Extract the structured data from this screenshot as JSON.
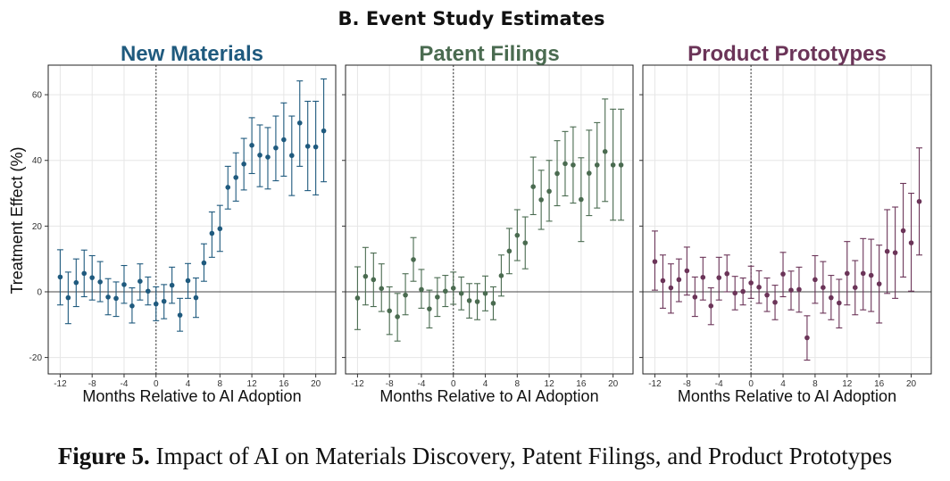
{
  "figure": {
    "suptitle": "B. Event Study Estimates",
    "caption_label": "Figure 5.",
    "caption_text": " Impact of AI on Materials Discovery, Patent Filings, and Product Prototypes",
    "ylabel": "Treatment Effect (%)"
  },
  "chart_data": [
    {
      "type": "scatter",
      "style": "point-with-error-bars",
      "title": "New Materials",
      "color": "#1f5a7e",
      "xlabel": "Months Relative to AI Adoption",
      "ylabel": "Treatment Effect (%)",
      "xlim": [
        -13.5,
        22.5
      ],
      "ylim": [
        -25,
        69
      ],
      "xticks": [
        -12,
        -8,
        -4,
        0,
        4,
        8,
        12,
        16,
        20
      ],
      "xtick_labels": [
        "-12",
        "-8",
        "-4",
        "0",
        "4",
        "8",
        "12",
        "16",
        "20"
      ],
      "yticks": [
        -20,
        0,
        20,
        40,
        60
      ],
      "ytick_labels": [
        "-20",
        "0",
        "20",
        "40",
        "60"
      ],
      "reference_lines": {
        "vertical_dotted_x": 0,
        "horizontal_y": 0
      },
      "grid": true,
      "x": [
        -12,
        -11,
        -10,
        -9,
        -8,
        -7,
        -6,
        -5,
        -4,
        -3,
        -2,
        -1,
        0,
        1,
        2,
        3,
        4,
        5,
        6,
        7,
        8,
        9,
        10,
        11,
        12,
        13,
        14,
        15,
        16,
        17,
        18,
        19,
        20,
        21
      ],
      "estimate": [
        4.5,
        -1.8,
        2.8,
        5.6,
        4.3,
        3.0,
        -1.6,
        -2.0,
        2.2,
        -4.3,
        3.2,
        0.2,
        -3.7,
        -2.9,
        2.0,
        -7.1,
        3.4,
        -1.8,
        8.8,
        17.8,
        19.2,
        31.8,
        34.8,
        38.9,
        44.6,
        41.6,
        41.0,
        43.8,
        46.3,
        41.5,
        51.4,
        44.3,
        44.1,
        49.0
      ],
      "ci_low": [
        -4,
        -9.7,
        -4.5,
        -1.5,
        -2.5,
        -3,
        -7,
        -7.5,
        -3.5,
        -9.5,
        -2.5,
        -4,
        -8.8,
        -8.2,
        -3.5,
        -12,
        -2,
        -7.8,
        3.2,
        10.5,
        12.3,
        25.2,
        27.6,
        31.0,
        36.0,
        32.0,
        31.3,
        33.8,
        35.2,
        29.3,
        38.2,
        30.8,
        29.5,
        33.5
      ],
      "ci_high": [
        12.8,
        6,
        10,
        12.7,
        11,
        9.2,
        4,
        3,
        8,
        1.2,
        8.5,
        4.5,
        1.5,
        2.2,
        7.5,
        -2,
        8.6,
        4.2,
        14.6,
        24.3,
        26.3,
        38.2,
        42.3,
        46.7,
        53.0,
        50.8,
        50.0,
        53.5,
        57.5,
        53.5,
        64.2,
        58.0,
        58.0,
        64.8
      ]
    },
    {
      "type": "scatter",
      "style": "point-with-error-bars",
      "title": "Patent Filings",
      "color": "#4a6b50",
      "xlabel": "Months Relative to AI Adoption",
      "ylabel": "Treatment Effect (%)",
      "xlim": [
        -13.5,
        22.5
      ],
      "ylim": [
        -25,
        69
      ],
      "xticks": [
        -12,
        -8,
        -4,
        0,
        4,
        8,
        12,
        16,
        20
      ],
      "xtick_labels": [
        "-12",
        "-8",
        "-4",
        "0",
        "4",
        "8",
        "12",
        "16",
        "20"
      ],
      "yticks": [
        -20,
        0,
        20,
        40,
        60
      ],
      "ytick_labels": [
        "-20",
        "0",
        "20",
        "40",
        "60"
      ],
      "reference_lines": {
        "vertical_dotted_x": 0,
        "horizontal_y": 0
      },
      "grid": true,
      "x": [
        -12,
        -11,
        -10,
        -9,
        -8,
        -7,
        -6,
        -5,
        -4,
        -3,
        -2,
        -1,
        0,
        1,
        2,
        3,
        4,
        5,
        6,
        7,
        8,
        9,
        10,
        11,
        12,
        13,
        14,
        15,
        16,
        17,
        18,
        19,
        20,
        21
      ],
      "estimate": [
        -1.9,
        4.7,
        3.7,
        1.0,
        -5.8,
        -7.6,
        -1.0,
        9.8,
        0.7,
        -5.2,
        -1.6,
        0.2,
        1.1,
        -0.5,
        -2.7,
        -3.0,
        -0.5,
        -3.5,
        4.9,
        12.4,
        17.2,
        14.9,
        32.0,
        28.0,
        30.6,
        36.0,
        39.0,
        38.6,
        28.1,
        36.1,
        38.6,
        42.7,
        38.6,
        38.6
      ],
      "ci_low": [
        -11.5,
        -4,
        -4.5,
        -6,
        -13,
        -15,
        -7,
        3.2,
        -5,
        -11,
        -7.5,
        -4.5,
        -3.8,
        -5.5,
        -8,
        -8.5,
        -5.8,
        -8.5,
        -1.3,
        5.5,
        9.5,
        7,
        23.5,
        19,
        21.5,
        26.2,
        29.2,
        27,
        15.3,
        23.2,
        25.5,
        27.5,
        21.8,
        21.8
      ],
      "ci_high": [
        7.6,
        13.5,
        11.8,
        8.5,
        1.5,
        -0.5,
        5.5,
        16.5,
        6.8,
        0.5,
        4.3,
        5,
        6,
        4.5,
        2.5,
        2.5,
        4.8,
        1.5,
        11.2,
        19.3,
        25,
        22.8,
        41,
        37,
        40,
        46,
        48.8,
        50.2,
        40.8,
        49.2,
        51.5,
        58.7,
        55.6,
        55.6
      ]
    },
    {
      "type": "scatter",
      "style": "point-with-error-bars",
      "title": "Product Prototypes",
      "color": "#6b3458",
      "xlabel": "Months Relative to AI Adoption",
      "ylabel": "Treatment Effect (%)",
      "xlim": [
        -13.5,
        22.5
      ],
      "ylim": [
        -25,
        69
      ],
      "xticks": [
        -12,
        -8,
        -4,
        0,
        4,
        8,
        12,
        16,
        20
      ],
      "xtick_labels": [
        "-12",
        "-8",
        "-4",
        "0",
        "4",
        "8",
        "12",
        "16",
        "20"
      ],
      "yticks": [
        -20,
        0,
        20,
        40,
        60
      ],
      "ytick_labels": [
        "-20",
        "0",
        "20",
        "40",
        "60"
      ],
      "reference_lines": {
        "vertical_dotted_x": 0,
        "horizontal_y": 0
      },
      "grid": true,
      "x": [
        -12,
        -11,
        -10,
        -9,
        -8,
        -7,
        -6,
        -5,
        -4,
        -3,
        -2,
        -1,
        0,
        1,
        2,
        3,
        4,
        5,
        6,
        7,
        8,
        9,
        10,
        11,
        12,
        13,
        14,
        15,
        16,
        17,
        18,
        19,
        20,
        21
      ],
      "estimate": [
        9.2,
        3.4,
        1.2,
        3.7,
        6.4,
        -1.6,
        4.4,
        -4.3,
        4.3,
        5.5,
        -0.4,
        0.1,
        2.7,
        1.4,
        -1.0,
        -3.2,
        5.4,
        0.5,
        0.7,
        -14.0,
        3.7,
        1.3,
        -1.8,
        -3.4,
        5.6,
        1.3,
        5.6,
        5.0,
        2.4,
        12.3,
        11.9,
        18.6,
        14.9,
        27.5
      ],
      "ci_low": [
        0.5,
        -5,
        -6.5,
        -3,
        -1,
        -7.5,
        -2.5,
        -10,
        -2.5,
        0,
        -5.5,
        -4,
        -2,
        -3.5,
        -6,
        -8.5,
        -1.5,
        -5.5,
        -6.2,
        -20.8,
        -3.5,
        -6.5,
        -8.5,
        -11,
        -4,
        -7,
        -5.5,
        -6,
        -9.5,
        -0.5,
        -2,
        4.5,
        0.2,
        11.2
      ],
      "ci_high": [
        18.5,
        11.2,
        8.5,
        10,
        13.6,
        4.5,
        10.5,
        1.2,
        10.5,
        11.2,
        4.7,
        4.2,
        7.8,
        6.4,
        4.2,
        2,
        12,
        6.3,
        7.5,
        -7.3,
        11,
        9.2,
        5,
        3.8,
        15.3,
        9.5,
        16.2,
        16,
        14.2,
        25,
        25.8,
        33,
        30,
        43.8
      ]
    }
  ]
}
